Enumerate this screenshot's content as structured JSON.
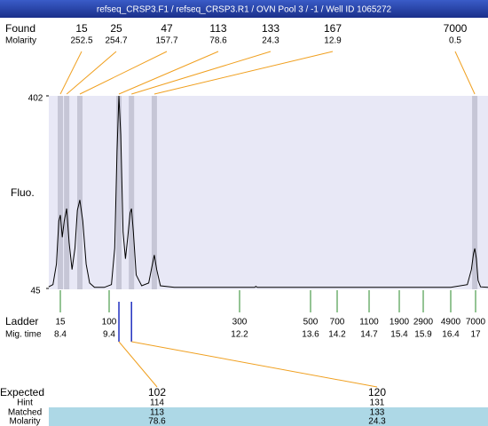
{
  "title": "refseq_CRSP3.F1 / refseq_CRSP3.R1 / OVN Pool 3 / -1 / Well ID 1065272",
  "found": {
    "label": "Found",
    "sublabel": "Molarity",
    "peaks": [
      {
        "size": 15,
        "molarity": 252.5,
        "time": 8.4
      },
      {
        "size": 25,
        "molarity": 254.7,
        "time": 8.53
      },
      {
        "size": 47,
        "molarity": 157.7,
        "time": 8.8
      },
      {
        "size": 113,
        "molarity": 78.6,
        "time": 9.61
      },
      {
        "size": 133,
        "molarity": 24.3,
        "time": 9.88
      },
      {
        "size": 167,
        "molarity": 12.9,
        "time": 10.37
      },
      {
        "size": 7000,
        "molarity": 0.5,
        "time": 16.98
      }
    ]
  },
  "chart_data": {
    "type": "line",
    "y_label": "Fluo.",
    "ylim": [
      45,
      402
    ],
    "yticks": [
      45,
      402
    ],
    "x": [
      8.16,
      8.25,
      8.32,
      8.37,
      8.4,
      8.44,
      8.48,
      8.53,
      8.58,
      8.64,
      8.7,
      8.75,
      8.8,
      8.86,
      8.93,
      9.0,
      9.1,
      9.3,
      9.45,
      9.52,
      9.57,
      9.61,
      9.65,
      9.7,
      9.75,
      9.8,
      9.85,
      9.88,
      9.92,
      9.98,
      10.1,
      10.25,
      10.33,
      10.37,
      10.42,
      10.5,
      10.8,
      12.5,
      12.52,
      12.55,
      14.2,
      16.4,
      16.8,
      16.9,
      16.95,
      16.98,
      17.02,
      17.06,
      17.12,
      17.3
    ],
    "series": [
      {
        "color": "#000000",
        "values": [
          48,
          52,
          90,
          170,
          181,
          140,
          170,
          193,
          130,
          80,
          120,
          190,
          209,
          170,
          90,
          55,
          47,
          47,
          52,
          120,
          300,
          402,
          330,
          150,
          100,
          140,
          185,
          193,
          150,
          70,
          50,
          55,
          90,
          107,
          80,
          50,
          47,
          47,
          49,
          47,
          47,
          47,
          52,
          80,
          110,
          119,
          100,
          60,
          48,
          47
        ]
      }
    ]
  },
  "ladder": {
    "label": "Ladder",
    "sublabel": "Mig. time",
    "sizes": [
      15,
      100,
      300,
      500,
      700,
      1100,
      1900,
      2900,
      4900,
      7000
    ],
    "times": [
      8.4,
      9.4,
      12.2,
      13.6,
      14.2,
      14.7,
      15.4,
      15.9,
      16.4,
      17
    ]
  },
  "expected": {
    "label": "Expected",
    "row_labels": [
      "Hint",
      "Matched",
      "Molarity"
    ],
    "items": [
      {
        "expected": 102,
        "hint": 114,
        "matched": 113,
        "molarity": 78.6
      },
      {
        "expected": 120,
        "hint": 131,
        "matched": 133,
        "molarity": 24.3
      }
    ]
  }
}
